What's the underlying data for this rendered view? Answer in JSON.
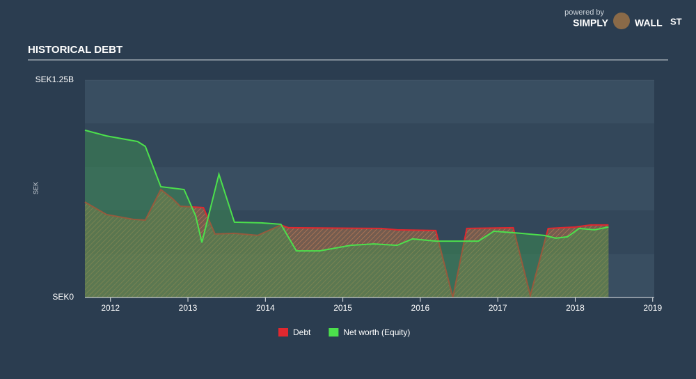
{
  "chart_data": {
    "type": "area",
    "title": "HISTORICAL DEBT",
    "ylabel": "SEK",
    "branding": {
      "powered": "powered by",
      "name": "SIMPLY",
      "name2": "WALL",
      "name3": "ST"
    },
    "xlim": [
      2011.67,
      2019.02
    ],
    "xticks": [
      2012,
      2013,
      2014,
      2015,
      2016,
      2017,
      2018,
      2019
    ],
    "ylim": [
      0,
      1250000000
    ],
    "yticks": [
      {
        "value": 0,
        "label": "SEK0"
      },
      {
        "value": 1250000000,
        "label": "SEK1.25B"
      }
    ],
    "grid": true,
    "legend": "bottom",
    "series": [
      {
        "name": "Debt",
        "color": "#e0282f",
        "x": [
          2011.67,
          2011.95,
          2012.3,
          2012.45,
          2012.65,
          2012.8,
          2012.9,
          2013.2,
          2013.35,
          2013.6,
          2013.9,
          2014.2,
          2014.3,
          2015.5,
          2015.7,
          2016.2,
          2016.42,
          2016.6,
          2017.2,
          2017.42,
          2017.65,
          2018.0,
          2018.2,
          2018.43
        ],
        "values": [
          549000000,
          477000000,
          449000000,
          445000000,
          621000000,
          569000000,
          525000000,
          517000000,
          365000000,
          369000000,
          357000000,
          417000000,
          401000000,
          397000000,
          389000000,
          385000000,
          0,
          397000000,
          401000000,
          12000000,
          397000000,
          405000000,
          417000000,
          417000000
        ]
      },
      {
        "name": "Net worth (Equity)",
        "color": "#4ce04c",
        "x": [
          2011.67,
          2011.95,
          2012.35,
          2012.45,
          2012.65,
          2012.95,
          2013.1,
          2013.18,
          2013.4,
          2013.6,
          2013.95,
          2014.2,
          2014.4,
          2014.7,
          2015.1,
          2015.4,
          2015.7,
          2015.9,
          2016.2,
          2016.75,
          2016.95,
          2017.3,
          2017.6,
          2017.75,
          2017.9,
          2018.05,
          2018.25,
          2018.43
        ],
        "values": [
          962000000,
          929000000,
          897000000,
          869000000,
          637000000,
          621000000,
          469000000,
          316000000,
          709000000,
          433000000,
          429000000,
          421000000,
          268000000,
          268000000,
          300000000,
          308000000,
          300000000,
          337000000,
          324000000,
          324000000,
          381000000,
          369000000,
          357000000,
          341000000,
          349000000,
          397000000,
          389000000,
          405000000
        ]
      }
    ]
  }
}
